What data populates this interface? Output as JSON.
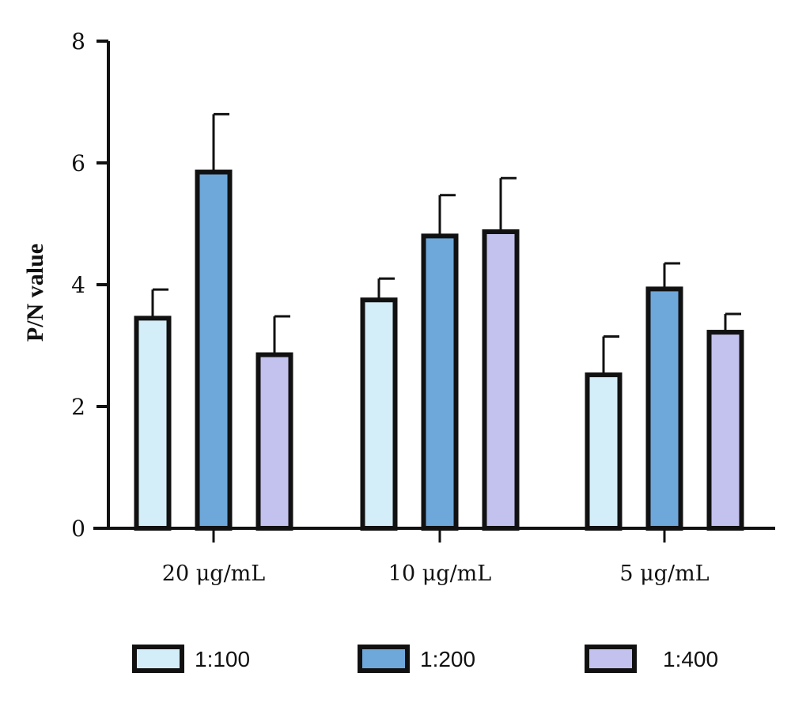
{
  "chart_data": {
    "type": "bar",
    "title": "",
    "xlabel": "",
    "ylabel": "P/N value",
    "ylim": [
      0,
      8
    ],
    "yticks": [
      "0",
      "2",
      "4",
      "6",
      "8"
    ],
    "grid": false,
    "legend_position": "bottom",
    "categories": [
      "20 μg/mL",
      "10 μg/mL",
      "5 μg/mL"
    ],
    "series": [
      {
        "name": "1:100",
        "color": "#d4eef9",
        "values": [
          3.45,
          3.75,
          2.52
        ],
        "errors": [
          0.47,
          0.35,
          0.63
        ]
      },
      {
        "name": "1:200",
        "color": "#6ea8da",
        "values": [
          5.85,
          4.8,
          3.93
        ],
        "errors": [
          0.95,
          0.67,
          0.42
        ]
      },
      {
        "name": "1:400",
        "color": "#c3c1ee",
        "values": [
          2.85,
          4.87,
          3.22
        ],
        "errors": [
          0.63,
          0.88,
          0.3
        ]
      }
    ]
  }
}
